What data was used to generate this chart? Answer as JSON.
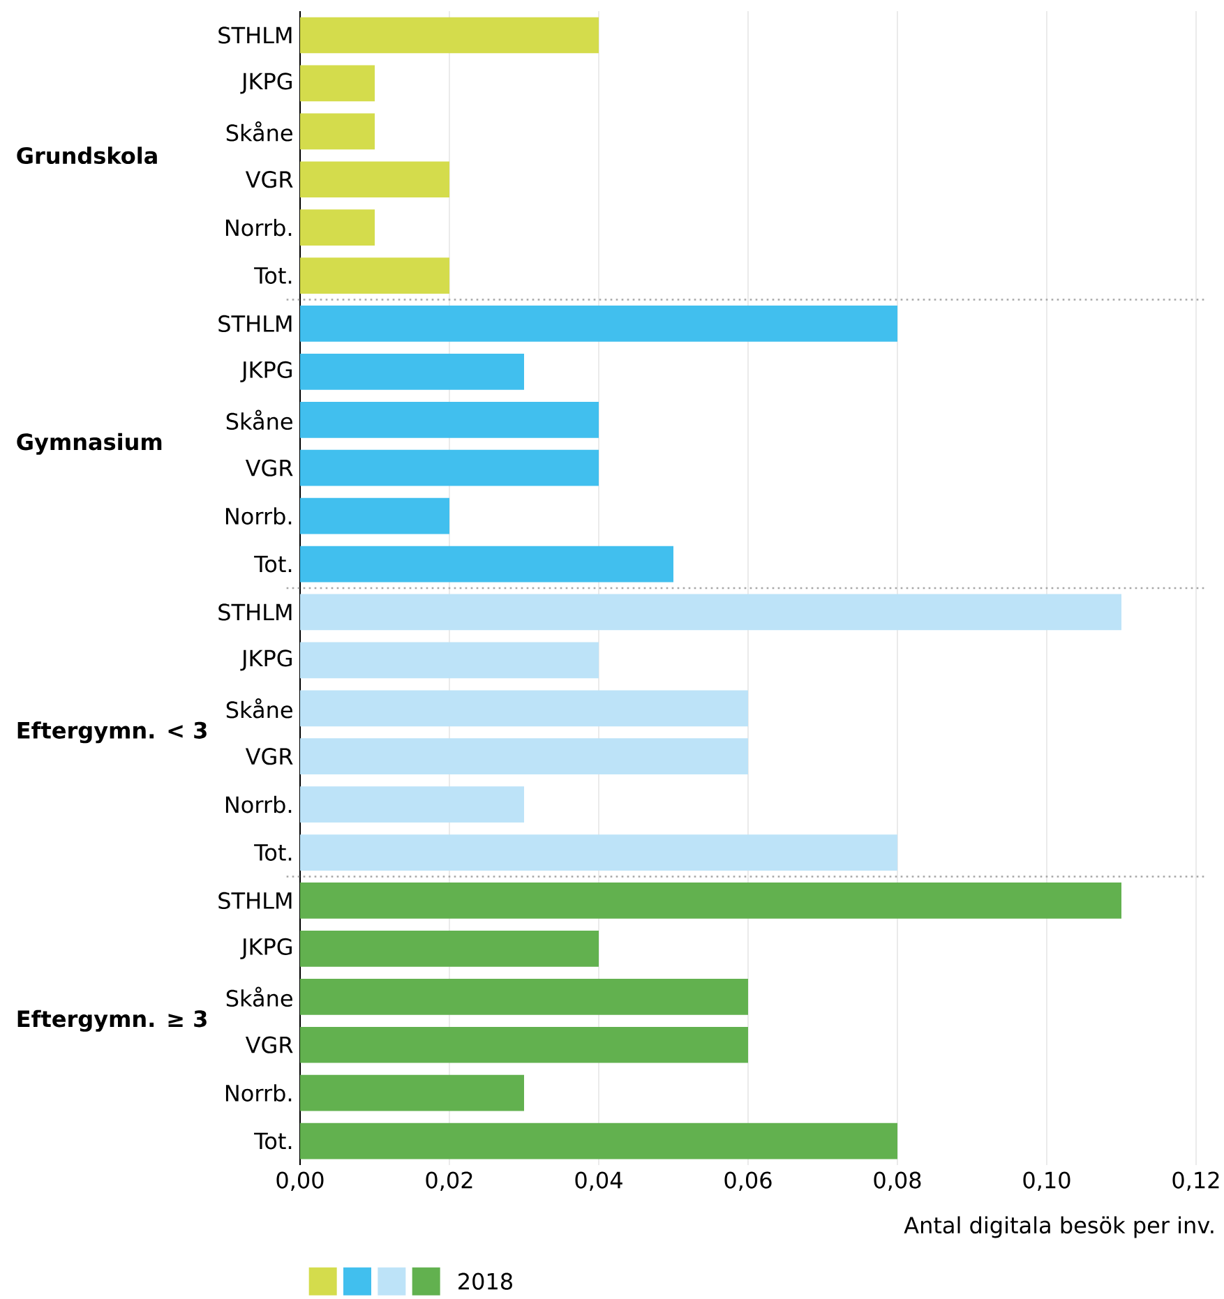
{
  "chart_data": {
    "type": "bar",
    "orientation": "horizontal",
    "categories": [
      "STHLM",
      "JKPG",
      "Skåne",
      "VGR",
      "Norrb.",
      "Tot.",
      "STHLM",
      "JKPG",
      "Skåne",
      "VGR",
      "Norrb.",
      "Tot.",
      "STHLM",
      "JKPG",
      "Skåne",
      "VGR",
      "Norrb.",
      "Tot.",
      "STHLM",
      "JKPG",
      "Skåne",
      "VGR",
      "Norrb.",
      "Tot."
    ],
    "series": [
      {
        "name": "2018",
        "values": [
          0.04,
          0.01,
          0.01,
          0.02,
          0.01,
          0.02,
          0.08,
          0.03,
          0.04,
          0.04,
          0.02,
          0.05,
          0.11,
          0.04,
          0.06,
          0.06,
          0.03,
          0.08,
          0.11,
          0.04,
          0.06,
          0.06,
          0.03,
          0.08
        ],
        "colors": [
          "#d4dc4c",
          "#d4dc4c",
          "#d4dc4c",
          "#d4dc4c",
          "#d4dc4c",
          "#d4dc4c",
          "#41bfee",
          "#41bfee",
          "#41bfee",
          "#41bfee",
          "#41bfee",
          "#41bfee",
          "#bde3f8",
          "#bde3f8",
          "#bde3f8",
          "#bde3f8",
          "#bde3f8",
          "#bde3f8",
          "#62b14f",
          "#62b14f",
          "#62b14f",
          "#62b14f",
          "#62b14f",
          "#62b14f"
        ]
      }
    ],
    "annotations": [
      "Grundskola",
      "Gymnasium",
      "Eftergymn. < 3",
      "Eftergymn. ≥ 3"
    ],
    "xlabel": "Antal digitala besök per inv.",
    "xlim": [
      0,
      0.12
    ],
    "xticks": [
      {
        "value": 0,
        "label": "0,00"
      },
      {
        "value": 0.02,
        "label": "0,02"
      },
      {
        "value": 0.04,
        "label": "0,04"
      },
      {
        "value": 0.06,
        "label": "0,06"
      },
      {
        "value": 0.08,
        "label": "0,08"
      },
      {
        "value": 0.1,
        "label": "0,10"
      },
      {
        "value": 0.12,
        "label": "0,12"
      }
    ],
    "grid": "x",
    "legend": "bottom"
  }
}
